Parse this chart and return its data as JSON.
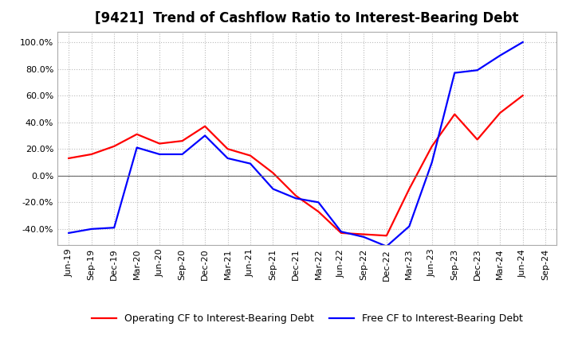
{
  "title": "[9421]  Trend of Cashflow Ratio to Interest-Bearing Debt",
  "x_labels": [
    "Jun-19",
    "Sep-19",
    "Dec-19",
    "Mar-20",
    "Jun-20",
    "Sep-20",
    "Dec-20",
    "Mar-21",
    "Jun-21",
    "Sep-21",
    "Dec-21",
    "Mar-22",
    "Jun-22",
    "Sep-22",
    "Dec-22",
    "Mar-23",
    "Jun-23",
    "Sep-23",
    "Dec-23",
    "Mar-24",
    "Jun-24",
    "Sep-24"
  ],
  "operating_cf": [
    0.13,
    0.16,
    0.22,
    0.31,
    0.24,
    0.26,
    0.37,
    0.2,
    0.15,
    0.02,
    -0.15,
    -0.27,
    -0.43,
    -0.44,
    -0.45,
    -0.1,
    0.22,
    0.46,
    0.27,
    0.47,
    0.6,
    null
  ],
  "free_cf": [
    -0.43,
    -0.4,
    -0.39,
    0.21,
    0.16,
    0.16,
    0.3,
    0.13,
    0.09,
    -0.1,
    -0.17,
    -0.2,
    -0.42,
    -0.46,
    -0.53,
    -0.38,
    0.1,
    0.77,
    0.79,
    0.9,
    1.0,
    null
  ],
  "ylim": [
    -0.52,
    1.08
  ],
  "yticks": [
    -0.4,
    -0.2,
    0.0,
    0.2,
    0.4,
    0.6,
    0.8,
    1.0
  ],
  "operating_color": "#ff0000",
  "free_color": "#0000ff",
  "background_color": "#ffffff",
  "grid_color": "#bbbbbb",
  "legend_operating": "Operating CF to Interest-Bearing Debt",
  "legend_free": "Free CF to Interest-Bearing Debt",
  "title_fontsize": 12,
  "axis_fontsize": 8,
  "legend_fontsize": 9,
  "linewidth": 1.6
}
